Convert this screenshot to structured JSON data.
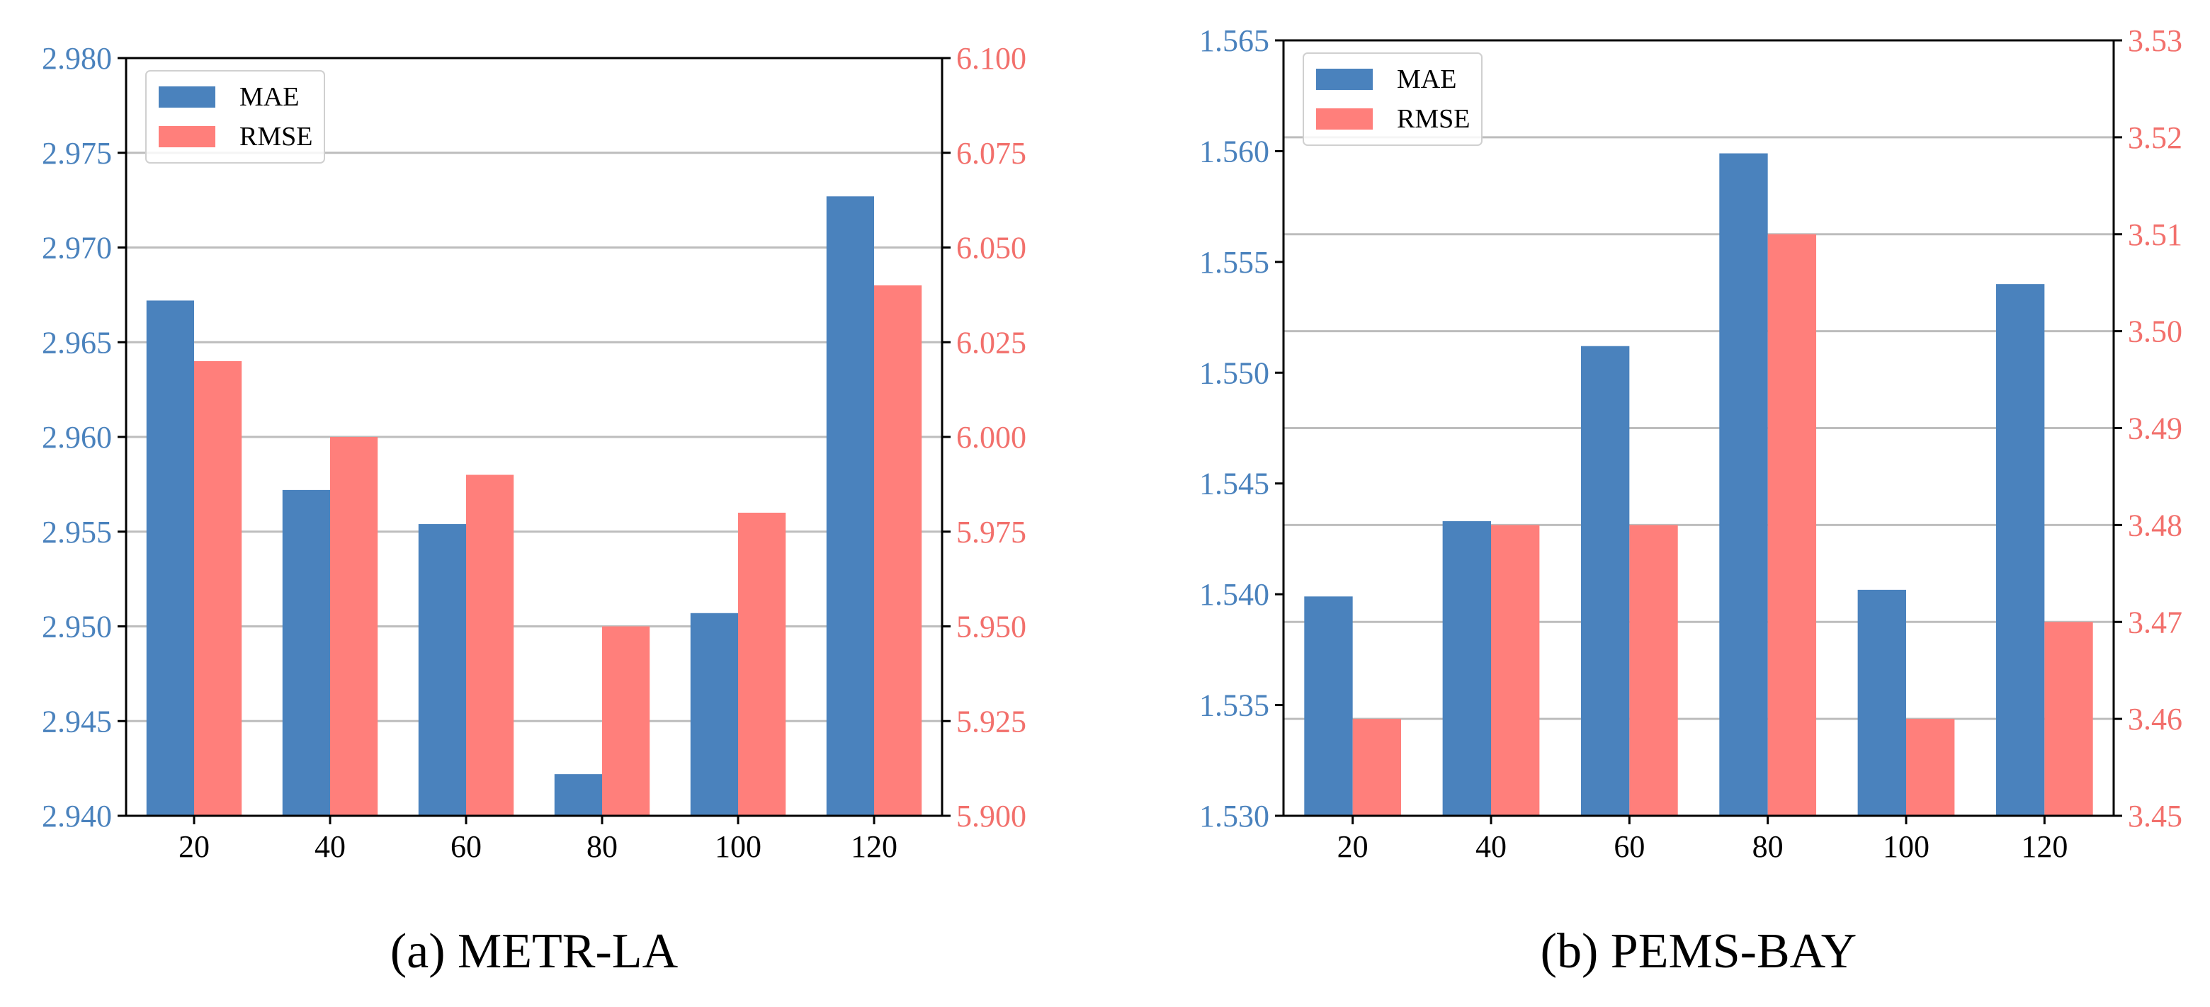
{
  "colors": {
    "mae": "#4a82bd",
    "rmse": "#ff7f7b",
    "left_axis_text": "#4a82bd",
    "right_axis_text": "#f2706c",
    "grid": "#bdbdbd"
  },
  "chart_data": [
    {
      "type": "bar",
      "caption": "(a)  METR-LA",
      "categories": [
        "20",
        "40",
        "60",
        "80",
        "100",
        "120"
      ],
      "series": [
        {
          "name": "MAE",
          "axis": "left",
          "values": [
            2.9672,
            2.9572,
            2.9554,
            2.9422,
            2.9507,
            2.9727
          ]
        },
        {
          "name": "RMSE",
          "axis": "right",
          "values": [
            6.02,
            6.0,
            5.99,
            5.95,
            5.98,
            6.04
          ]
        }
      ],
      "left_ylim": [
        2.94,
        2.98
      ],
      "left_ticks": [
        "2.940",
        "2.945",
        "2.950",
        "2.955",
        "2.960",
        "2.965",
        "2.970",
        "2.975",
        "2.980"
      ],
      "right_ylim": [
        5.9,
        6.1
      ],
      "right_ticks": [
        "5.900",
        "5.925",
        "5.950",
        "5.975",
        "6.000",
        "6.025",
        "6.050",
        "6.075",
        "6.100"
      ],
      "legend": {
        "placement": "top-left",
        "labels": [
          "MAE",
          "RMSE"
        ]
      },
      "grid": "right-axis"
    },
    {
      "type": "bar",
      "caption": "(b)  PEMS-BAY",
      "categories": [
        "20",
        "40",
        "60",
        "80",
        "100",
        "120"
      ],
      "series": [
        {
          "name": "MAE",
          "axis": "left",
          "values": [
            1.5399,
            1.5433,
            1.5512,
            1.5599,
            1.5402,
            1.554
          ]
        },
        {
          "name": "RMSE",
          "axis": "right",
          "values": [
            3.46,
            3.48,
            3.48,
            3.51,
            3.46,
            3.47
          ]
        }
      ],
      "left_ylim": [
        1.53,
        1.565
      ],
      "left_ticks": [
        "1.530",
        "1.535",
        "1.540",
        "1.545",
        "1.550",
        "1.555",
        "1.560",
        "1.565"
      ],
      "right_ylim": [
        3.45,
        3.53
      ],
      "right_ticks": [
        "3.45",
        "3.46",
        "3.47",
        "3.48",
        "3.49",
        "3.50",
        "3.51",
        "3.52",
        "3.53"
      ],
      "legend": {
        "placement": "top-left",
        "labels": [
          "MAE",
          "RMSE"
        ]
      },
      "grid": "right-axis"
    }
  ]
}
